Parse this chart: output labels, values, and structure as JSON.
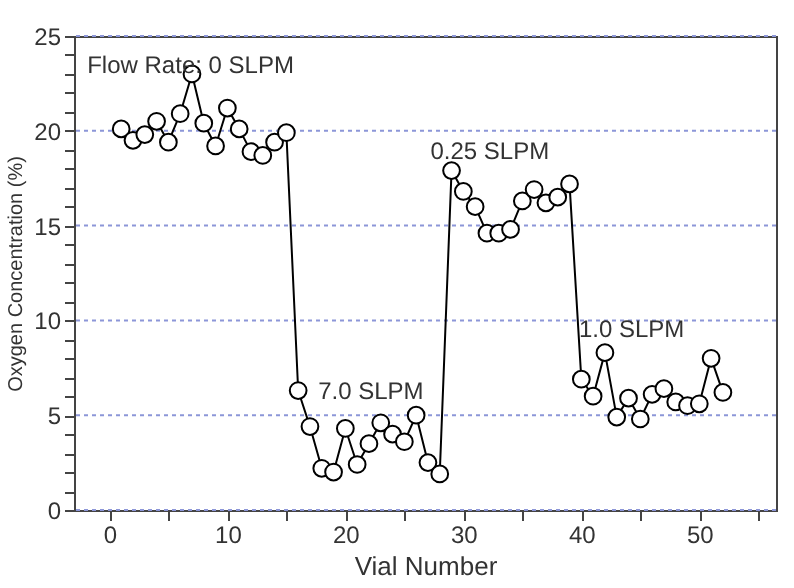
{
  "chart_data": {
    "type": "line",
    "xlabel": "Vial Number",
    "ylabel": "Oxygen Concentration (%)",
    "x": [
      1,
      2,
      3,
      4,
      5,
      6,
      7,
      8,
      9,
      10,
      11,
      12,
      13,
      14,
      15,
      16,
      17,
      18,
      19,
      20,
      21,
      22,
      23,
      24,
      25,
      26,
      27,
      28,
      29,
      30,
      31,
      32,
      33,
      34,
      35,
      36,
      37,
      38,
      39,
      40,
      41,
      42,
      43,
      44,
      45,
      46,
      47,
      48,
      49,
      50,
      51,
      52
    ],
    "series": [
      {
        "color": "#000000",
        "values": [
          20.1,
          19.5,
          19.8,
          20.5,
          19.4,
          20.9,
          23.0,
          20.4,
          19.2,
          21.2,
          20.1,
          18.9,
          18.7,
          19.4,
          19.9,
          6.3,
          4.4,
          2.2,
          2.0,
          4.3,
          2.4,
          3.5,
          4.6,
          4.0,
          3.6,
          5.0,
          2.5,
          1.9,
          17.9,
          16.8,
          16.0,
          14.6,
          14.6,
          14.8,
          16.3,
          16.9,
          16.2,
          16.5,
          17.2,
          6.9,
          6.0,
          8.3,
          4.9,
          5.9,
          4.8,
          6.1,
          6.4,
          5.7,
          5.5,
          5.6,
          8.0,
          6.2
        ]
      }
    ],
    "marker": "circle",
    "line_style": "solid",
    "grid": "y",
    "xlim": [
      -3,
      56.5
    ],
    "ylim": [
      0,
      25
    ],
    "xticks": [
      0,
      {
        "value": 5,
        "label": null
      },
      10,
      {
        "value": 15,
        "label": null
      },
      20,
      {
        "value": 25,
        "label": null
      },
      30,
      {
        "value": 35,
        "label": null
      },
      40,
      {
        "value": 45,
        "label": null
      },
      50,
      {
        "value": 55,
        "label": null
      }
    ],
    "yticks": [
      0,
      {
        "value": 1,
        "label": null
      },
      {
        "value": 2,
        "label": null
      },
      {
        "value": 3,
        "label": null
      },
      {
        "value": 4,
        "label": null
      },
      5,
      {
        "value": 6,
        "label": null
      },
      {
        "value": 7,
        "label": null
      },
      {
        "value": 8,
        "label": null
      },
      {
        "value": 9,
        "label": null
      },
      10,
      {
        "value": 11,
        "label": null
      },
      {
        "value": 12,
        "label": null
      },
      {
        "value": 13,
        "label": null
      },
      {
        "value": 14,
        "label": null
      },
      15,
      {
        "value": 16,
        "label": null
      },
      {
        "value": 17,
        "label": null
      },
      {
        "value": 18,
        "label": null
      },
      {
        "value": 19,
        "label": null
      },
      20,
      {
        "value": 21,
        "label": null
      },
      {
        "value": 22,
        "label": null
      },
      {
        "value": 23,
        "label": null
      },
      {
        "value": 24,
        "label": null
      },
      25
    ],
    "annotations": [
      "Flow Rate: 0 SLPM",
      "7.0 SLPM",
      "0.25 SLPM",
      "1.0 SLPM"
    ]
  }
}
